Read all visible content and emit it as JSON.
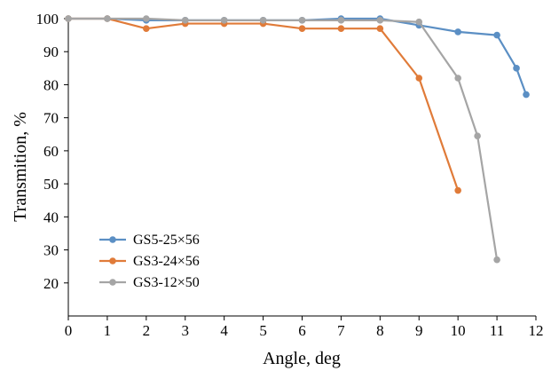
{
  "chart_data": {
    "type": "line",
    "title": "",
    "xlabel": "Angle, deg",
    "ylabel": "Transmition, %",
    "xlim": [
      0,
      12
    ],
    "ylim": [
      10,
      100
    ],
    "xticks": [
      0,
      1,
      2,
      3,
      4,
      5,
      6,
      7,
      8,
      9,
      10,
      11,
      12
    ],
    "yticks": [
      20,
      30,
      40,
      50,
      60,
      70,
      80,
      90,
      100
    ],
    "grid": false,
    "legend_position": "bottom-left",
    "series": [
      {
        "name": "GS5-25×56",
        "color": "#5b8fc4",
        "x": [
          0,
          1,
          2,
          3,
          4,
          5,
          6,
          7,
          8,
          9,
          10,
          11,
          11.5,
          11.75
        ],
        "y": [
          100,
          100,
          99.5,
          99.5,
          99.5,
          99.5,
          99.5,
          100,
          100,
          98,
          96,
          95,
          85,
          77
        ]
      },
      {
        "name": "GS3-24×56",
        "color": "#e07b39",
        "x": [
          0,
          1,
          2,
          3,
          4,
          5,
          6,
          7,
          8,
          9,
          10
        ],
        "y": [
          100,
          100,
          97,
          98.5,
          98.5,
          98.5,
          97,
          97,
          97,
          82,
          48
        ]
      },
      {
        "name": "GS3-12×50",
        "color": "#a5a5a5",
        "x": [
          0,
          1,
          2,
          3,
          4,
          5,
          6,
          7,
          8,
          9,
          10,
          10.5,
          11
        ],
        "y": [
          100,
          100,
          100,
          99.5,
          99.5,
          99.5,
          99.5,
          99.5,
          99.5,
          99,
          82,
          64.5,
          27
        ]
      }
    ]
  }
}
